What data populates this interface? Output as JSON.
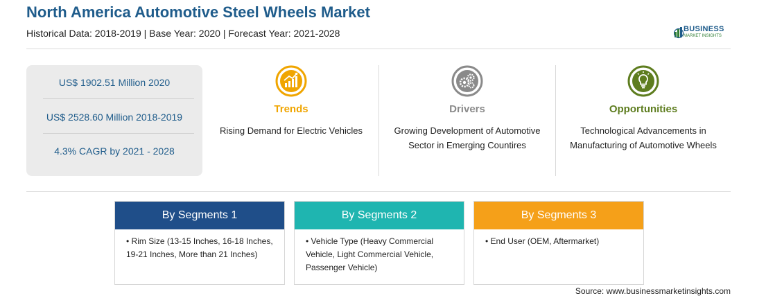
{
  "header": {
    "title": "North America Automotive Steel Wheels Market",
    "subtitle": "Historical Data: 2018-2019 | Base Year: 2020 | Forecast Year: 2021-2028"
  },
  "logo": {
    "name": "BUSINESS",
    "tagline": "MARKET INSIGHTS"
  },
  "stats": [
    "US$ 1902.51 Million 2020",
    "US$ 2528.60 Million 2018-2019",
    "4.3% CAGR by 2021 - 2028"
  ],
  "factors": [
    {
      "title": "Trends",
      "text": "Rising Demand for Electric Vehicles",
      "color": "#f0a500",
      "icon": "trend-chart-icon"
    },
    {
      "title": "Drivers",
      "text": "Growing Development of Automotive Sector in Emerging Countires",
      "color": "#8a8a8a",
      "icon": "gears-icon"
    },
    {
      "title": "Opportunities",
      "text": "Technological Advancements in Manufacturing of Automotive Wheels",
      "color": "#5e7d1f",
      "icon": "lightbulb-icon"
    }
  ],
  "segments": [
    {
      "title": "By Segments 1",
      "color": "#1f4e89",
      "text": "Rim Size (13-15 Inches, 16-18 Inches, 19-21 Inches, More than 21 Inches)"
    },
    {
      "title": "By Segments 2",
      "color": "#1fb5b0",
      "text": "Vehicle Type (Heavy Commercial Vehicle, Light Commercial Vehicle, Passenger Vehicle)"
    },
    {
      "title": "By Segments 3",
      "color": "#f5a019",
      "text": "End User (OEM, Aftermarket)"
    }
  ],
  "bullet": "•",
  "source": "Source: www.businessmarketinsights.com"
}
